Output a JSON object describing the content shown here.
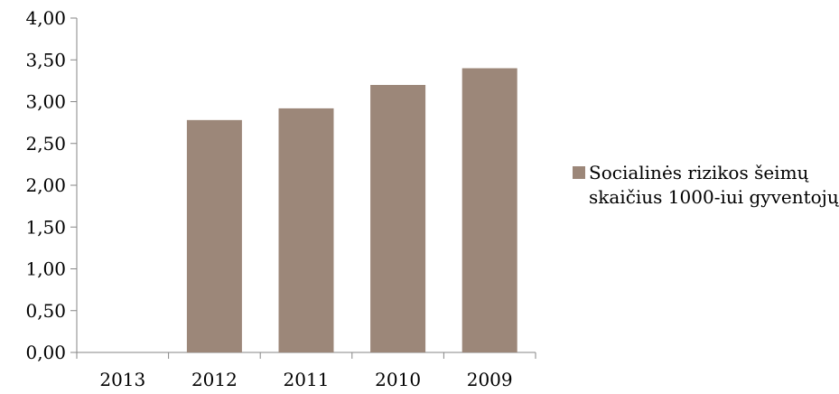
{
  "chart_data": {
    "type": "bar",
    "categories": [
      "2013",
      "2012",
      "2011",
      "2010",
      "2009"
    ],
    "series": [
      {
        "name": "Socialinės rizikos šeimų skaičius 1000-iui gyventojų",
        "values": [
          null,
          2.78,
          2.92,
          3.2,
          3.4
        ],
        "color": "#9c8779"
      }
    ],
    "ylim": [
      0,
      4
    ],
    "yticks": [
      "0,00",
      "0,50",
      "1,00",
      "1,50",
      "2,00",
      "2,50",
      "3,00",
      "3,50",
      "4,00"
    ],
    "xlabel": "",
    "ylabel": "",
    "title": "",
    "grid": false,
    "legend_position": "right"
  }
}
